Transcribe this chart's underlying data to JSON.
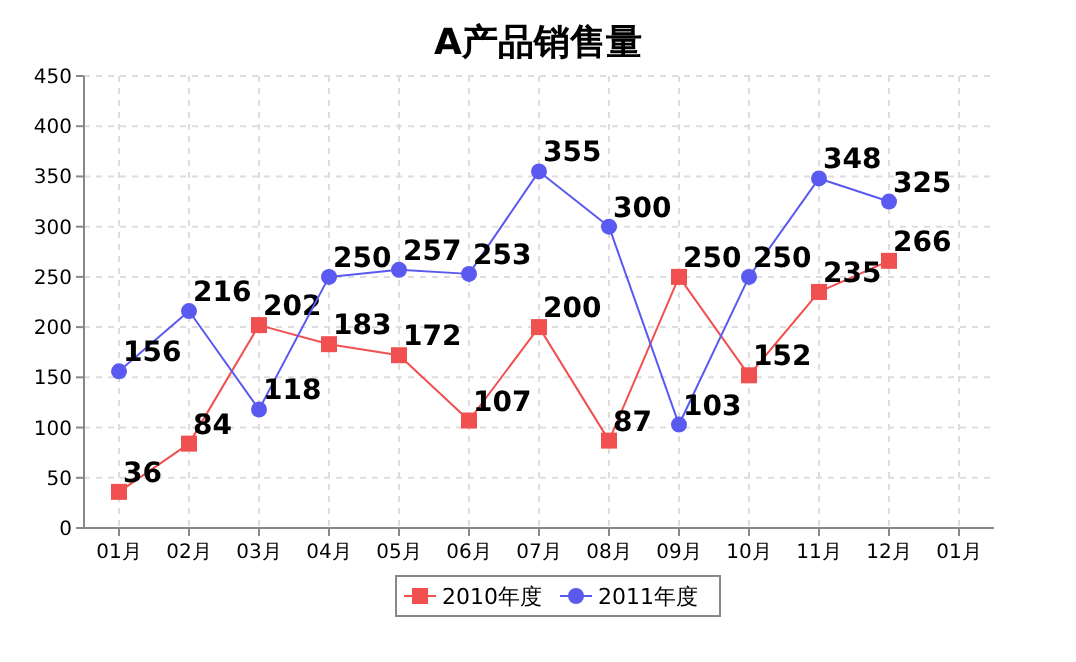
{
  "chart_data": {
    "type": "line",
    "title": "A产品销售量",
    "categories": [
      "01月",
      "02月",
      "03月",
      "04月",
      "05月",
      "06月",
      "07月",
      "08月",
      "09月",
      "10月",
      "11月",
      "12月",
      "01月"
    ],
    "series": [
      {
        "name": "2010年度",
        "color": "#f05050",
        "marker": "square",
        "values": [
          36,
          84,
          202,
          183,
          172,
          107,
          200,
          87,
          250,
          152,
          235,
          266,
          null
        ]
      },
      {
        "name": "2011年度",
        "color": "#5a5af0",
        "marker": "circle",
        "values": [
          156,
          216,
          118,
          250,
          257,
          253,
          355,
          300,
          103,
          250,
          348,
          325,
          null
        ]
      }
    ],
    "ylim": [
      0,
      450
    ],
    "yticks": [
      0,
      50,
      100,
      150,
      200,
      250,
      300,
      350,
      400,
      450
    ],
    "grid": true,
    "legend": "bottom",
    "data_labels": true,
    "line_style": "solid"
  }
}
